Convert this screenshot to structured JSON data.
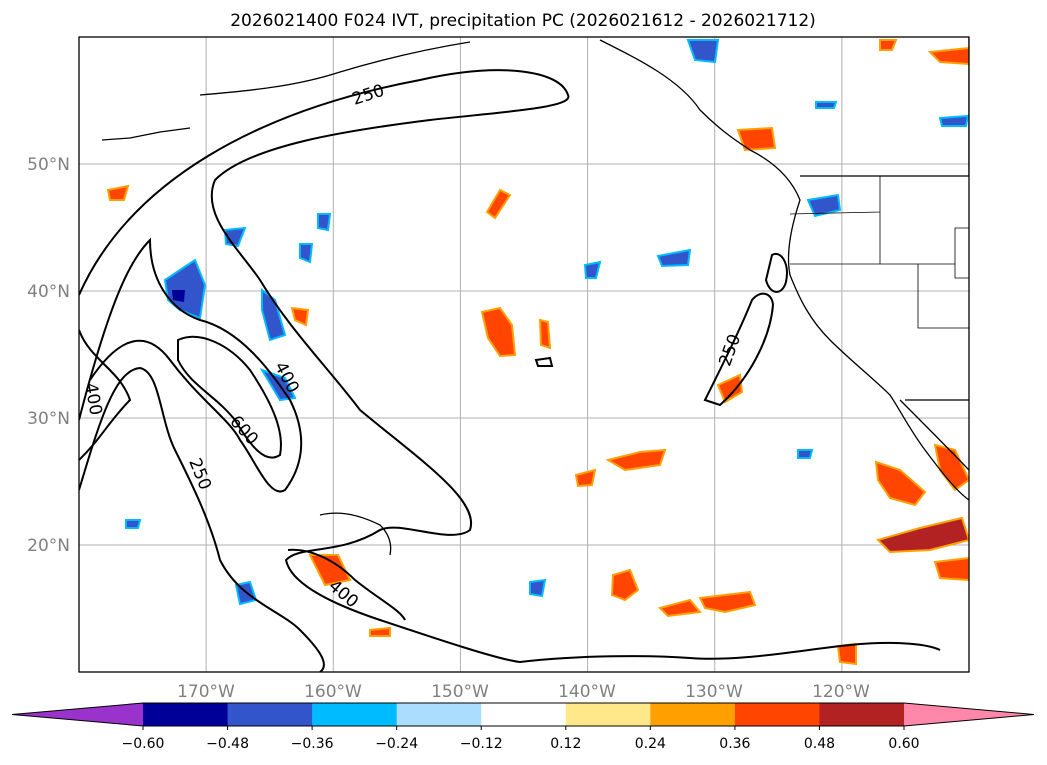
{
  "title": "2026021400 F024 IVT, precipitation PC (2026021612 - 2026021712)",
  "map": {
    "lat_labels": [
      "50°N",
      "40°N",
      "30°N",
      "20°N"
    ],
    "lon_labels": [
      "170°W",
      "160°W",
      "150°W",
      "140°W",
      "130°W",
      "120°W"
    ],
    "lat_values": [
      50,
      40,
      30,
      20
    ],
    "lon_values": [
      -170,
      -160,
      -150,
      -140,
      -130,
      -120
    ],
    "extent": {
      "lon_min": -180,
      "lon_max": -110,
      "lat_min": 10,
      "lat_max": 60
    },
    "contour_labels": [
      "250",
      "400",
      "600",
      "400",
      "250",
      "400",
      "250"
    ],
    "gridline_color": "#b0b0b0",
    "coast_color": "#000000"
  },
  "colorbar": {
    "tick_labels": [
      "−0.60",
      "−0.48",
      "−0.36",
      "−0.24",
      "−0.12",
      "0.12",
      "0.24",
      "0.36",
      "0.48",
      "0.60"
    ],
    "colors": [
      "#9933cc",
      "#000099",
      "#3355cc",
      "#00bbff",
      "#aaddff",
      "#ffffff",
      "#ffe88a",
      "#ffa000",
      "#ff4500",
      "#b22222",
      "#ff88aa"
    ]
  }
}
